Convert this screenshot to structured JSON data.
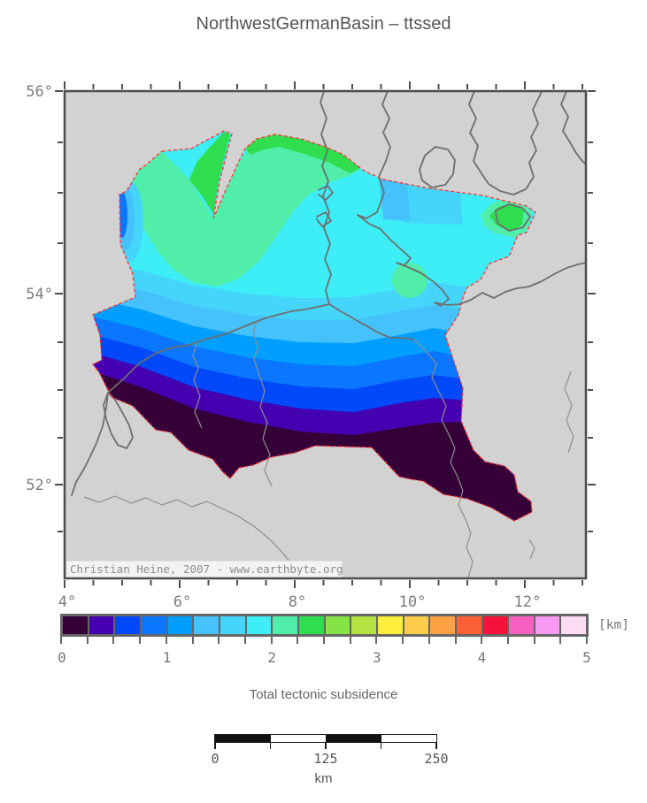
{
  "figure": {
    "title": "NorthwestGermanBasin – ttssed"
  },
  "map": {
    "lat_labels": [
      "56°",
      "54°",
      "52°"
    ],
    "lon_labels": [
      "4°",
      "6°",
      "8°",
      "10°",
      "12°"
    ],
    "watermark": "Christian Heine, 2007 - www.earthbyte.org",
    "land_color": "#d2d2d2",
    "coast_color": "#6e6e6e",
    "river_color": "#8f8f8f",
    "frame_color": "#4d4d4d",
    "basin_outline_color": "#ff3333"
  },
  "colorbar": {
    "unit": "[km]",
    "ticks": [
      "0",
      "1",
      "2",
      "3",
      "4",
      "5"
    ],
    "caption": "Total tectonic subsidence",
    "colors": [
      "#350038",
      "#4400b0",
      "#0049fa",
      "#0b76ff",
      "#009fff",
      "#45c1fb",
      "#45d5fb",
      "#3deef7",
      "#51eea9",
      "#2ede4e",
      "#86e345",
      "#b3e340",
      "#fdee3c",
      "#fdcc4a",
      "#fda143",
      "#fb6037",
      "#f5123c",
      "#f760c0",
      "#f99af2",
      "#fcdcf2"
    ]
  },
  "scalebar": {
    "ticks": [
      "0",
      "125",
      "250"
    ],
    "unit": "km"
  }
}
